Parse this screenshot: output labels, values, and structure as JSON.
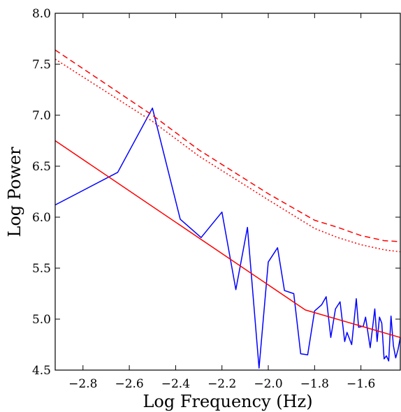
{
  "chart_data": {
    "type": "line",
    "xlabel": "Log Frequency (Hz)",
    "ylabel": "Log Power",
    "xlim": [
      -2.92,
      -1.43
    ],
    "ylim": [
      4.5,
      8.0
    ],
    "xticks": [
      -2.8,
      -2.6,
      -2.4,
      -2.2,
      -2.0,
      -1.8,
      -1.6
    ],
    "xtick_labels": [
      "−2.8",
      "−2.6",
      "−2.4",
      "−2.2",
      "−2.0",
      "−1.8",
      "−1.6"
    ],
    "yticks": [
      4.5,
      5.0,
      5.5,
      6.0,
      6.5,
      7.0,
      7.5,
      8.0
    ],
    "ytick_labels": [
      "4.5",
      "5.0",
      "5.5",
      "6.0",
      "6.5",
      "7.0",
      "7.5",
      "8.0"
    ],
    "grid": false,
    "series": [
      {
        "color": "#0000ff",
        "style": "solid",
        "x": [
          -2.92,
          -2.65,
          -2.5,
          -2.38,
          -2.29,
          -2.2,
          -2.14,
          -2.09,
          -2.04,
          -2.0,
          -1.96,
          -1.93,
          -1.89,
          -1.86,
          -1.83,
          -1.8,
          -1.77,
          -1.75,
          -1.73,
          -1.71,
          -1.69,
          -1.67,
          -1.66,
          -1.64,
          -1.62,
          -1.61,
          -1.59,
          -1.58,
          -1.56,
          -1.54,
          -1.53,
          -1.52,
          -1.51,
          -1.5,
          -1.49,
          -1.48,
          -1.47,
          -1.46,
          -1.45,
          -1.44,
          -1.43
        ],
        "y": [
          6.12,
          6.44,
          7.07,
          5.98,
          5.8,
          6.05,
          5.29,
          5.9,
          4.52,
          5.56,
          5.7,
          5.28,
          5.25,
          4.66,
          4.65,
          5.08,
          5.14,
          5.22,
          4.82,
          5.1,
          5.17,
          4.78,
          4.87,
          4.75,
          5.2,
          4.92,
          4.93,
          5.02,
          4.72,
          5.1,
          4.78,
          5.02,
          4.96,
          4.61,
          4.64,
          4.59,
          5.03,
          4.74,
          4.62,
          4.7,
          4.82
        ]
      },
      {
        "color": "#ff0000",
        "style": "solid",
        "x": [
          -2.92,
          -1.84,
          -1.43
        ],
        "y": [
          6.75,
          5.09,
          4.82
        ]
      },
      {
        "color": "#ff0000",
        "style": "dashed",
        "x": [
          -2.92,
          -2.5,
          -2.3,
          -2.0,
          -1.8,
          -1.7,
          -1.6,
          -1.5,
          -1.43
        ],
        "y": [
          7.64,
          7.0,
          6.66,
          6.23,
          5.97,
          5.9,
          5.82,
          5.77,
          5.76
        ]
      },
      {
        "color": "#ff0000",
        "style": "dotted",
        "x": [
          -2.92,
          -2.5,
          -2.3,
          -2.0,
          -1.8,
          -1.7,
          -1.6,
          -1.5,
          -1.43
        ],
        "y": [
          7.55,
          6.94,
          6.6,
          6.17,
          5.89,
          5.8,
          5.73,
          5.68,
          5.66
        ]
      }
    ]
  }
}
